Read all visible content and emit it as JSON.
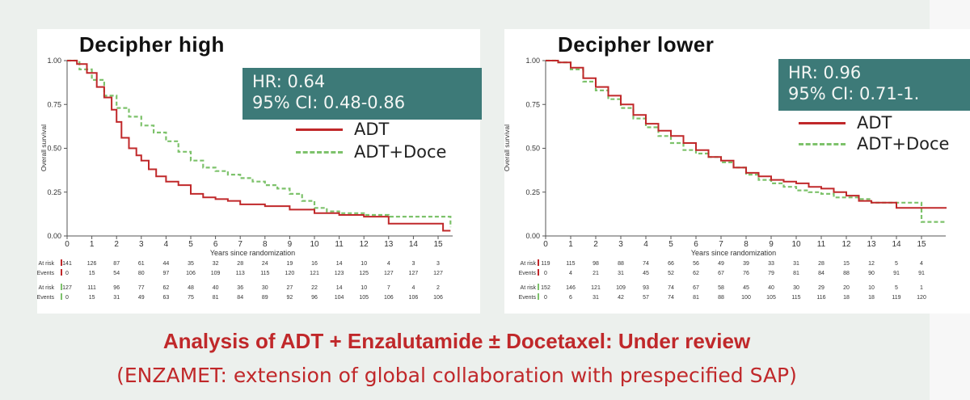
{
  "chart_data": [
    {
      "type": "line",
      "title": "Decipher high",
      "xlabel": "Years since randomization",
      "ylabel": "Overall survival",
      "xlim": [
        0,
        16
      ],
      "ylim": [
        0,
        1
      ],
      "xticks": [
        "0",
        "1",
        "2",
        "3",
        "4",
        "5",
        "6",
        "7",
        "8",
        "9",
        "10",
        "11",
        "12",
        "13",
        "14",
        "15"
      ],
      "yticks": [
        "0.00",
        "0.25",
        "0.50",
        "0.75",
        "1.00"
      ],
      "hr_line1": "HR: 0.64",
      "hr_line2": "95% CI: 0.48-0.86",
      "series": [
        {
          "name": "ADT",
          "color": "#c0282a",
          "style": "solid",
          "x": [
            0,
            0.4,
            0.8,
            1.2,
            1.5,
            1.8,
            2.0,
            2.2,
            2.5,
            2.8,
            3.0,
            3.3,
            3.6,
            4.0,
            4.5,
            5.0,
            5.5,
            6.0,
            6.5,
            7.0,
            8.0,
            9.0,
            10.0,
            11.0,
            12.0,
            12.9,
            13.0,
            14.0,
            15.0,
            15.2,
            15.5
          ],
          "y": [
            1.0,
            0.98,
            0.93,
            0.85,
            0.79,
            0.72,
            0.65,
            0.56,
            0.5,
            0.46,
            0.43,
            0.38,
            0.34,
            0.31,
            0.29,
            0.24,
            0.22,
            0.21,
            0.2,
            0.18,
            0.17,
            0.15,
            0.13,
            0.12,
            0.11,
            0.11,
            0.07,
            0.07,
            0.07,
            0.03,
            0.03
          ]
        },
        {
          "name": "ADT+Doce",
          "color": "#7dc26b",
          "style": "dashed",
          "x": [
            0,
            0.5,
            1.0,
            1.5,
            2.0,
            2.5,
            3.0,
            3.5,
            4.0,
            4.5,
            5.0,
            5.5,
            6.0,
            6.5,
            7.0,
            7.5,
            8.0,
            8.5,
            9.0,
            9.5,
            10.0,
            10.5,
            11.0,
            12.0,
            13.0,
            14.0,
            15.0,
            15.5
          ],
          "y": [
            1.0,
            0.95,
            0.89,
            0.8,
            0.73,
            0.68,
            0.63,
            0.59,
            0.54,
            0.48,
            0.43,
            0.39,
            0.37,
            0.35,
            0.33,
            0.31,
            0.29,
            0.27,
            0.24,
            0.2,
            0.16,
            0.14,
            0.13,
            0.12,
            0.11,
            0.11,
            0.11,
            0.05
          ]
        }
      ],
      "risk_table": {
        "rows": [
          {
            "label": "At risk",
            "values": [
              "141",
              "126",
              "87",
              "61",
              "44",
              "35",
              "32",
              "28",
              "24",
              "19",
              "16",
              "14",
              "10",
              "4",
              "3",
              "3"
            ]
          },
          {
            "label": "Events",
            "values": [
              "0",
              "15",
              "54",
              "80",
              "97",
              "106",
              "109",
              "113",
              "115",
              "120",
              "121",
              "123",
              "125",
              "127",
              "127",
              "127"
            ]
          },
          {
            "label": "At risk",
            "values": [
              "127",
              "111",
              "96",
              "77",
              "62",
              "48",
              "40",
              "36",
              "30",
              "27",
              "22",
              "14",
              "10",
              "7",
              "4",
              "2"
            ]
          },
          {
            "label": "Events",
            "values": [
              "0",
              "15",
              "31",
              "49",
              "63",
              "75",
              "81",
              "84",
              "89",
              "92",
              "96",
              "104",
              "105",
              "106",
              "106",
              "106"
            ]
          }
        ]
      }
    },
    {
      "type": "line",
      "title": "Decipher lower",
      "xlabel": "Years since randomization",
      "ylabel": "Overall survival",
      "xlim": [
        0,
        16
      ],
      "ylim": [
        0,
        1
      ],
      "xticks": [
        "0",
        "1",
        "2",
        "3",
        "4",
        "5",
        "6",
        "7",
        "8",
        "9",
        "10",
        "11",
        "12",
        "13",
        "14",
        "15"
      ],
      "yticks": [
        "0.00",
        "0.25",
        "0.50",
        "0.75",
        "1.00"
      ],
      "hr_line1": "HR: 0.96",
      "hr_line2": "95% CI: 0.71-1.",
      "series": [
        {
          "name": "ADT",
          "color": "#c0282a",
          "style": "solid",
          "x": [
            0,
            0.5,
            1.0,
            1.5,
            2.0,
            2.5,
            3.0,
            3.5,
            4.0,
            4.5,
            5.0,
            5.5,
            6.0,
            6.5,
            7.0,
            7.5,
            8.0,
            8.5,
            9.0,
            9.5,
            10.0,
            10.5,
            11.0,
            11.5,
            12.0,
            12.5,
            13.0,
            13.5,
            14.0,
            15.0,
            16.0
          ],
          "y": [
            1.0,
            0.99,
            0.96,
            0.9,
            0.85,
            0.8,
            0.75,
            0.69,
            0.64,
            0.6,
            0.57,
            0.53,
            0.49,
            0.45,
            0.43,
            0.39,
            0.36,
            0.34,
            0.32,
            0.31,
            0.3,
            0.28,
            0.27,
            0.25,
            0.23,
            0.2,
            0.19,
            0.19,
            0.16,
            0.16,
            0.16
          ]
        },
        {
          "name": "ADT+Doce",
          "color": "#7dc26b",
          "style": "dashed",
          "x": [
            0,
            0.5,
            1.0,
            1.5,
            2.0,
            2.5,
            3.0,
            3.5,
            4.0,
            4.5,
            5.0,
            5.5,
            6.0,
            6.5,
            7.0,
            7.5,
            8.0,
            8.5,
            9.0,
            9.5,
            10.0,
            10.5,
            11.0,
            11.5,
            12.0,
            12.5,
            13.0,
            14.0,
            14.8,
            15.0,
            16.0
          ],
          "y": [
            1.0,
            0.99,
            0.95,
            0.88,
            0.83,
            0.78,
            0.73,
            0.67,
            0.62,
            0.57,
            0.53,
            0.49,
            0.47,
            0.45,
            0.42,
            0.39,
            0.35,
            0.32,
            0.3,
            0.28,
            0.26,
            0.25,
            0.24,
            0.22,
            0.22,
            0.21,
            0.19,
            0.19,
            0.19,
            0.08,
            0.08
          ]
        }
      ],
      "risk_table": {
        "rows": [
          {
            "label": "At risk",
            "values": [
              "119",
              "115",
              "98",
              "88",
              "74",
              "66",
              "56",
              "49",
              "39",
              "33",
              "31",
              "28",
              "15",
              "12",
              "5",
              "4"
            ]
          },
          {
            "label": "Events",
            "values": [
              "0",
              "4",
              "21",
              "31",
              "45",
              "52",
              "62",
              "67",
              "76",
              "79",
              "81",
              "84",
              "88",
              "90",
              "91",
              "91"
            ]
          },
          {
            "label": "At risk",
            "values": [
              "152",
              "146",
              "121",
              "109",
              "93",
              "74",
              "67",
              "58",
              "45",
              "40",
              "30",
              "29",
              "20",
              "10",
              "5",
              "1"
            ]
          },
          {
            "label": "Events",
            "values": [
              "0",
              "6",
              "31",
              "42",
              "57",
              "74",
              "81",
              "88",
              "100",
              "105",
              "115",
              "116",
              "18",
              "18",
              "119",
              "120"
            ]
          }
        ]
      }
    }
  ],
  "footer": {
    "headline": "Analysis of ADT + Enzalutamide ± Docetaxel: Under review",
    "subline": "(ENZAMET: extension of global collaboration with prespecified SAP)"
  }
}
